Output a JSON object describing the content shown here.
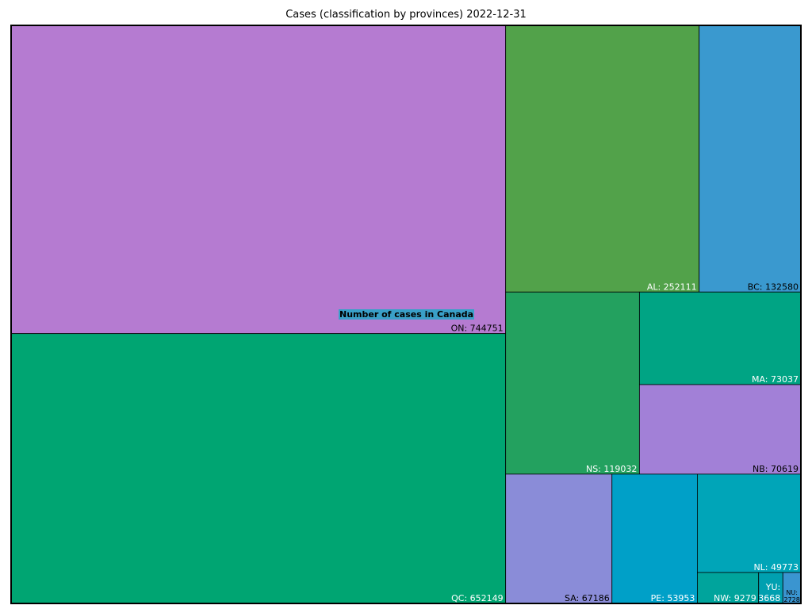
{
  "chart_data": {
    "type": "treemap",
    "title": "Cases (classification by provinces)  2022-12-31",
    "annotation": "Number of cases in Canada",
    "tiles": [
      {
        "name": "ON",
        "value": 744751,
        "label": "ON: 744751",
        "color": "#b57bd1",
        "label_color": "#000000"
      },
      {
        "name": "QC",
        "value": 652149,
        "label": "QC: 652149",
        "color": "#00a572",
        "label_color": "#ffffff"
      },
      {
        "name": "AL",
        "value": 252111,
        "label": "AL: 252111",
        "color": "#52a24a",
        "label_color": "#ffffff"
      },
      {
        "name": "BC",
        "value": 132580,
        "label": "BC: 132580",
        "color": "#3a99cf",
        "label_color": "#000000"
      },
      {
        "name": "NS",
        "value": 119032,
        "label": "NS: 119032",
        "color": "#23a15f",
        "label_color": "#ffffff"
      },
      {
        "name": "MA",
        "value": 73037,
        "label": "MA: 73037",
        "color": "#00a484",
        "label_color": "#ffffff"
      },
      {
        "name": "NB",
        "value": 70619,
        "label": "NB: 70619",
        "color": "#a280d7",
        "label_color": "#000000"
      },
      {
        "name": "SA",
        "value": 67186,
        "label": "SA: 67186",
        "color": "#8a8cd8",
        "label_color": "#000000"
      },
      {
        "name": "PE",
        "value": 53953,
        "label": "PE: 53953",
        "color": "#00a0c8",
        "label_color": "#ffffff"
      },
      {
        "name": "NL",
        "value": 49773,
        "label": "NL: 49773",
        "color": "#00a5b8",
        "label_color": "#ffffff"
      },
      {
        "name": "NW",
        "value": 9279,
        "label": "NW: 9279",
        "color": "#00a49c",
        "label_color": "#ffffff"
      },
      {
        "name": "YU",
        "value": 3668,
        "label": "YU: 3668",
        "color": "#00a0b0",
        "label_color": "#ffffff"
      },
      {
        "name": "NU",
        "value": 2728,
        "label": "NU: 2728",
        "color": "#3a95d0",
        "label_color": "#000000"
      }
    ]
  }
}
